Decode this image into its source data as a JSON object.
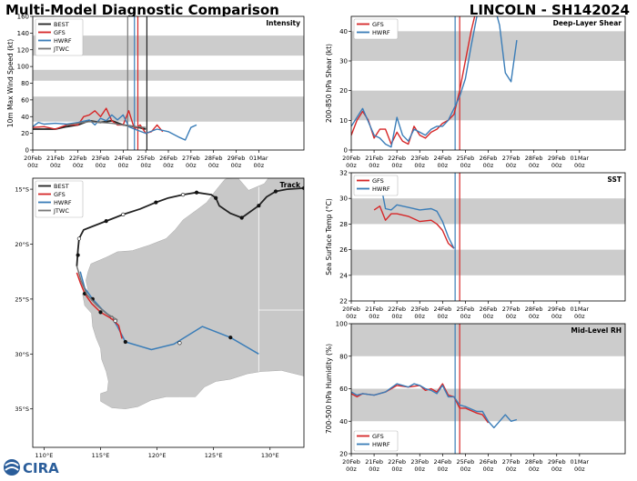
{
  "header": {
    "title": "Multi-Model Diagnostic Comparison",
    "storm_id": "LINCOLN - SH142024"
  },
  "logo": {
    "text": "CIRA",
    "icon": "cira-logo-icon"
  },
  "x_axis": {
    "range_days": [
      20,
      32
    ],
    "ticks": [
      {
        "day": 20,
        "label": "20Feb\n00z"
      },
      {
        "day": 21,
        "label": "21Feb\n00z"
      },
      {
        "day": 22,
        "label": "22Feb\n00z"
      },
      {
        "day": 23,
        "label": "23Feb\n00z"
      },
      {
        "day": 24,
        "label": "24Feb\n00z"
      },
      {
        "day": 25,
        "label": "25Feb\n00z"
      },
      {
        "day": 26,
        "label": "26Feb\n00z"
      },
      {
        "day": 27,
        "label": "27Feb\n00z"
      },
      {
        "day": 28,
        "label": "28Feb\n00z"
      },
      {
        "day": 29,
        "label": "29Feb\n00z"
      },
      {
        "day": 30,
        "label": "01Mar\n00z"
      }
    ]
  },
  "colors": {
    "BEST": "#222222",
    "GFS": "#d62728",
    "HWRF": "#3a7db8",
    "JTWC": "#777777",
    "band": "#cccccc"
  },
  "chart_data": [
    {
      "id": "intensity",
      "type": "line",
      "title": "Intensity",
      "ylabel": "10m Max Wind Speed (kt)",
      "ylim": [
        0,
        160
      ],
      "yticks": [
        0,
        20,
        40,
        60,
        80,
        100,
        120,
        140,
        160
      ],
      "bands": [
        [
          34,
          64
        ],
        [
          83,
          96
        ],
        [
          113,
          137
        ]
      ],
      "legend": [
        "BEST",
        "GFS",
        "HWRF",
        "JTWC"
      ],
      "vlines": [
        {
          "x": 24.2,
          "color": "#777777"
        },
        {
          "x": 24.5,
          "color": "#3a7db8"
        },
        {
          "x": 24.65,
          "color": "#d62728"
        },
        {
          "x": 25.05,
          "color": "#222222"
        }
      ],
      "series": [
        {
          "name": "BEST",
          "x": [
            20,
            20.5,
            21,
            21.5,
            22,
            22.5,
            23,
            23.5,
            24,
            24.5,
            25
          ],
          "y": [
            25,
            25,
            25,
            28,
            30,
            35,
            33,
            35,
            30,
            28,
            25
          ]
        },
        {
          "name": "GFS",
          "x": [
            20,
            20.5,
            21,
            21.5,
            22,
            22.25,
            22.5,
            22.75,
            23,
            23.25,
            23.5,
            23.75,
            24,
            24.25,
            24.5,
            24.75,
            25,
            25.25,
            25.5,
            25.75
          ],
          "y": [
            27,
            28,
            25,
            30,
            30,
            40,
            42,
            47,
            40,
            50,
            35,
            30,
            30,
            47,
            25,
            30,
            20,
            22,
            30,
            22
          ]
        },
        {
          "name": "HWRF",
          "x": [
            20,
            20.25,
            20.5,
            21,
            21.5,
            22,
            22.5,
            22.75,
            23,
            23.25,
            23.5,
            23.75,
            24,
            24.25,
            24.5,
            25,
            25.5,
            26,
            26.5,
            26.75,
            27,
            27.25
          ],
          "y": [
            28,
            33,
            31,
            32,
            31,
            33,
            36,
            30,
            38,
            35,
            42,
            36,
            42,
            28,
            25,
            20,
            25,
            22,
            15,
            12,
            27,
            30
          ]
        },
        {
          "name": "JTWC",
          "x": [
            21.5,
            22,
            22.5,
            23,
            23.5,
            24,
            24.5,
            25
          ],
          "y": [
            30,
            32,
            34,
            33,
            32,
            30,
            28,
            27
          ]
        }
      ]
    },
    {
      "id": "shear",
      "type": "line",
      "title": "Deep-Layer Shear",
      "ylabel": "200-850 hPa Shear (kt)",
      "ylim": [
        0,
        45
      ],
      "yticks": [
        0,
        10,
        20,
        30,
        40
      ],
      "bands": [
        [
          10,
          20
        ],
        [
          30,
          40
        ]
      ],
      "legend": [
        "GFS",
        "HWRF"
      ],
      "vlines": [
        {
          "x": 24.55,
          "color": "#3a7db8"
        },
        {
          "x": 24.75,
          "color": "#d62728"
        }
      ],
      "series": [
        {
          "name": "GFS",
          "x": [
            20,
            20.25,
            20.5,
            20.75,
            21,
            21.25,
            21.5,
            21.75,
            22,
            22.25,
            22.5,
            22.75,
            23,
            23.25,
            23.5,
            23.75,
            24,
            24.25,
            24.5,
            24.75,
            25,
            25.25,
            25.5
          ],
          "y": [
            5,
            10,
            13,
            10,
            4,
            7,
            7,
            2,
            6,
            3,
            2,
            8,
            5,
            4,
            6,
            7,
            9,
            10,
            12,
            20,
            30,
            40,
            48
          ]
        },
        {
          "name": "HWRF",
          "x": [
            20,
            20.5,
            21,
            21.25,
            21.5,
            21.75,
            22,
            22.25,
            22.5,
            22.75,
            23,
            23.25,
            23.5,
            23.75,
            24,
            24.25,
            24.5,
            24.75,
            25,
            25.25,
            25.5,
            25.75,
            26,
            26.25,
            26.5,
            26.75,
            27,
            27.25
          ],
          "y": [
            8,
            14,
            5,
            4,
            2,
            1,
            11,
            5,
            3,
            7,
            6,
            5,
            7,
            8,
            8,
            10,
            14,
            18,
            24,
            35,
            45,
            52,
            52,
            49,
            42,
            26,
            23,
            37
          ]
        }
      ]
    },
    {
      "id": "sst",
      "type": "line",
      "title": "SST",
      "ylabel": "Sea Surface Temp (°C)",
      "ylim": [
        22,
        32
      ],
      "yticks": [
        22,
        24,
        26,
        28,
        30,
        32
      ],
      "bands": [
        [
          24,
          26
        ],
        [
          28,
          30
        ]
      ],
      "legend": [
        "GFS",
        "HWRF"
      ],
      "vlines": [
        {
          "x": 24.55,
          "color": "#3a7db8"
        },
        {
          "x": 24.75,
          "color": "#d62728"
        }
      ],
      "series": [
        {
          "name": "GFS",
          "x": [
            21,
            21.25,
            21.5,
            21.75,
            22,
            22.5,
            23,
            23.5,
            23.75,
            24,
            24.25,
            24.5
          ],
          "y": [
            29.1,
            29.4,
            28.3,
            28.8,
            28.8,
            28.6,
            28.2,
            28.3,
            28.0,
            27.5,
            26.5,
            26.1
          ]
        },
        {
          "name": "HWRF",
          "x": [
            21.25,
            21.5,
            21.75,
            22,
            22.5,
            23,
            23.5,
            23.75,
            24,
            24.25,
            24.5
          ],
          "y": [
            31.5,
            29.2,
            29.1,
            29.5,
            29.3,
            29.1,
            29.2,
            29.0,
            28.2,
            27.0,
            26.1
          ]
        }
      ]
    },
    {
      "id": "rh",
      "type": "line",
      "title": "Mid-Level RH",
      "ylabel": "700-500 hPa Humidity (%)",
      "ylim": [
        20,
        100
      ],
      "yticks": [
        20,
        40,
        60,
        80,
        100
      ],
      "bands": [
        [
          40,
          60
        ],
        [
          80,
          100
        ]
      ],
      "legend": [
        "GFS",
        "HWRF"
      ],
      "vlines": [
        {
          "x": 24.55,
          "color": "#3a7db8"
        },
        {
          "x": 24.75,
          "color": "#d62728"
        }
      ],
      "series": [
        {
          "name": "GFS",
          "x": [
            20,
            20.25,
            20.5,
            21,
            21.5,
            22,
            22.5,
            23,
            23.25,
            23.5,
            23.75,
            24,
            24.25,
            24.5,
            24.75,
            25,
            25.5,
            25.75,
            26
          ],
          "y": [
            57,
            55,
            57,
            56,
            58,
            62,
            61,
            62,
            59,
            60,
            58,
            63,
            56,
            55,
            48,
            48,
            45,
            44,
            39
          ]
        },
        {
          "name": "HWRF",
          "x": [
            20,
            20.25,
            20.5,
            21,
            21.5,
            22,
            22.5,
            22.75,
            23,
            23.25,
            23.5,
            23.75,
            24,
            24.25,
            24.5,
            24.75,
            25,
            25.5,
            25.75,
            26,
            26.25,
            26.5,
            26.75,
            27,
            27.25
          ],
          "y": [
            58,
            56,
            57,
            56,
            58,
            63,
            61,
            63,
            62,
            60,
            59,
            57,
            62,
            55,
            55,
            50,
            49,
            46,
            46,
            40,
            36,
            40,
            44,
            40,
            41
          ]
        }
      ]
    },
    {
      "id": "track",
      "type": "scatter",
      "title": "Track",
      "xlim": [
        109,
        133
      ],
      "ylim": [
        -38.5,
        -14
      ],
      "xticks": [
        {
          "v": 110,
          "label": "110°E"
        },
        {
          "v": 115,
          "label": "115°E"
        },
        {
          "v": 120,
          "label": "120°E"
        },
        {
          "v": 125,
          "label": "125°E"
        },
        {
          "v": 130,
          "label": "130°E"
        }
      ],
      "yticks": [
        {
          "v": -15,
          "label": "15°S"
        },
        {
          "v": -20,
          "label": "20°S"
        },
        {
          "v": -25,
          "label": "25°S"
        },
        {
          "v": -30,
          "label": "30°S"
        },
        {
          "v": -35,
          "label": "35°S"
        }
      ],
      "legend": [
        "BEST",
        "GFS",
        "HWRF",
        "JTWC"
      ],
      "land_color": "#c8c8c8",
      "sea_color": "#ffffff",
      "series": [
        {
          "name": "BEST",
          "points": [
            [
              133,
              -14.9
            ],
            [
              131.5,
              -15.0
            ],
            [
              130.5,
              -15.2
            ],
            [
              129.7,
              -15.7
            ],
            [
              129,
              -16.5
            ],
            [
              127.5,
              -17.6
            ],
            [
              126.5,
              -17.2
            ],
            [
              125.5,
              -16.5
            ],
            [
              125.2,
              -15.8
            ],
            [
              124.8,
              -15.5
            ],
            [
              123.5,
              -15.3
            ],
            [
              122.3,
              -15.5
            ],
            [
              121,
              -15.8
            ],
            [
              119.9,
              -16.2
            ],
            [
              118.5,
              -16.8
            ],
            [
              117,
              -17.3
            ],
            [
              115.5,
              -17.9
            ],
            [
              114,
              -18.5
            ],
            [
              113.5,
              -18.7
            ],
            [
              113.1,
              -19.5
            ],
            [
              113.0,
              -20.5
            ],
            [
              112.9,
              -22.0
            ]
          ],
          "markers": [
            [
              133,
              -14.9
            ],
            [
              130.5,
              -15.2
            ],
            [
              129,
              -16.5
            ],
            [
              127.5,
              -17.6
            ],
            [
              125.2,
              -15.8
            ],
            [
              123.5,
              -15.3
            ],
            [
              122.3,
              -15.5
            ],
            [
              119.9,
              -16.2
            ],
            [
              117,
              -17.3
            ],
            [
              115.5,
              -17.9
            ],
            [
              113.1,
              -19.5
            ],
            [
              113.0,
              -21.0
            ]
          ],
          "hollow": [
            [
              122.3,
              -15.5
            ],
            [
              117,
              -17.3
            ],
            [
              113.1,
              -19.5
            ]
          ]
        },
        {
          "name": "GFS",
          "points": [
            [
              112.9,
              -22.6
            ],
            [
              113.2,
              -23.5
            ],
            [
              113.6,
              -24.5
            ],
            [
              114.2,
              -25.4
            ],
            [
              115.0,
              -26.2
            ],
            [
              116.0,
              -26.8
            ],
            [
              116.6,
              -27.4
            ],
            [
              116.9,
              -28.6
            ]
          ],
          "markers": [
            [
              113.6,
              -24.5
            ],
            [
              115.0,
              -26.2
            ],
            [
              116.3,
              -27.0
            ]
          ],
          "hollow": [
            [
              116.3,
              -27.0
            ]
          ]
        },
        {
          "name": "HWRF",
          "points": [
            [
              113.2,
              -22.5
            ],
            [
              113.6,
              -24.0
            ],
            [
              114.3,
              -25.0
            ],
            [
              115.1,
              -25.9
            ],
            [
              116.0,
              -26.7
            ],
            [
              116.5,
              -27.5
            ],
            [
              117.2,
              -28.9
            ],
            [
              119.5,
              -29.6
            ],
            [
              121.5,
              -29.1
            ],
            [
              124.0,
              -27.5
            ],
            [
              126.5,
              -28.5
            ],
            [
              129.0,
              -30.0
            ]
          ],
          "markers": [
            [
              114.3,
              -25.0
            ],
            [
              116.0,
              -26.7
            ],
            [
              117.2,
              -28.9
            ],
            [
              122.0,
              -29.0
            ],
            [
              126.5,
              -28.5
            ]
          ],
          "hollow": [
            [
              116.0,
              -26.7
            ],
            [
              122.0,
              -29.0
            ]
          ]
        },
        {
          "name": "JTWC",
          "points": [
            [
              112.9,
              -22.0
            ],
            [
              113.3,
              -23.4
            ],
            [
              113.8,
              -24.6
            ],
            [
              114.6,
              -25.5
            ],
            [
              115.5,
              -26.3
            ],
            [
              116.5,
              -26.9
            ]
          ],
          "markers": [],
          "hollow": []
        }
      ]
    }
  ]
}
